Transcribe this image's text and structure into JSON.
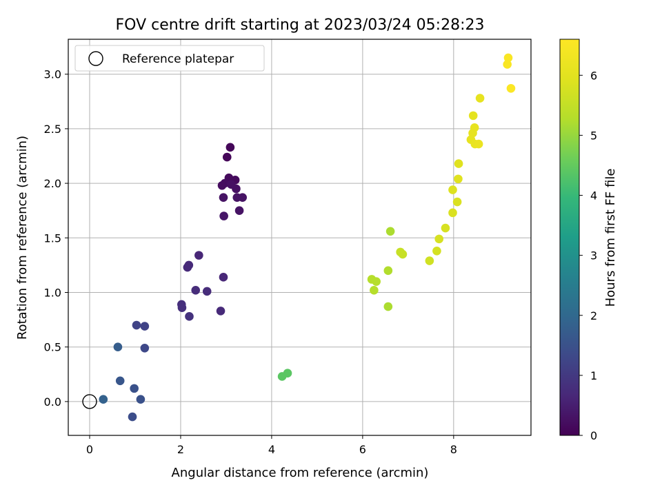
{
  "chart_data": {
    "type": "scatter",
    "title": "FOV centre drift starting at 2023/03/24 05:28:23",
    "xlabel": "Angular distance from reference (arcmin)",
    "ylabel": "Rotation from reference (arcmin)",
    "xlim": [
      -0.47,
      9.7
    ],
    "ylim": [
      -0.31,
      3.32
    ],
    "xticks": [
      0,
      2,
      4,
      6,
      8
    ],
    "yticks": [
      0.0,
      0.5,
      1.0,
      1.5,
      2.0,
      2.5,
      3.0
    ],
    "xtick_labels": [
      "0",
      "2",
      "4",
      "6",
      "8"
    ],
    "ytick_labels": [
      "0.0",
      "0.5",
      "1.0",
      "1.5",
      "2.0",
      "2.5",
      "3.0"
    ],
    "grid": true,
    "legend": {
      "label": "Reference platepar",
      "placement": "top-left"
    },
    "reference_point": {
      "x": 0,
      "y": 0
    },
    "colorbar": {
      "label": "Hours from first FF file",
      "range": [
        0,
        6.6
      ],
      "ticks": [
        0,
        1,
        2,
        3,
        4,
        5,
        6
      ],
      "tick_labels": [
        "0",
        "1",
        "2",
        "3",
        "4",
        "5",
        "6"
      ],
      "colormap": "viridis"
    },
    "points": [
      {
        "x": 3.09,
        "y": 2.33,
        "t": 0.1
      },
      {
        "x": 3.02,
        "y": 2.24,
        "t": 0.1
      },
      {
        "x": 3.06,
        "y": 2.05,
        "t": 0.15
      },
      {
        "x": 3.2,
        "y": 2.03,
        "t": 0.15
      },
      {
        "x": 2.97,
        "y": 2.0,
        "t": 0.2
      },
      {
        "x": 2.91,
        "y": 1.98,
        "t": 0.2
      },
      {
        "x": 3.11,
        "y": 1.99,
        "t": 0.25
      },
      {
        "x": 3.22,
        "y": 1.95,
        "t": 0.25
      },
      {
        "x": 2.94,
        "y": 1.87,
        "t": 0.3
      },
      {
        "x": 3.24,
        "y": 1.87,
        "t": 0.3
      },
      {
        "x": 3.36,
        "y": 1.87,
        "t": 0.3
      },
      {
        "x": 3.29,
        "y": 1.75,
        "t": 0.3
      },
      {
        "x": 2.95,
        "y": 1.7,
        "t": 0.35
      },
      {
        "x": 2.4,
        "y": 1.34,
        "t": 0.65
      },
      {
        "x": 2.18,
        "y": 1.25,
        "t": 0.7
      },
      {
        "x": 2.15,
        "y": 1.23,
        "t": 0.7
      },
      {
        "x": 2.94,
        "y": 1.14,
        "t": 0.65
      },
      {
        "x": 2.33,
        "y": 1.02,
        "t": 0.75
      },
      {
        "x": 2.58,
        "y": 1.01,
        "t": 0.75
      },
      {
        "x": 2.02,
        "y": 0.89,
        "t": 0.8
      },
      {
        "x": 2.03,
        "y": 0.86,
        "t": 0.8
      },
      {
        "x": 2.88,
        "y": 0.83,
        "t": 0.7
      },
      {
        "x": 2.19,
        "y": 0.78,
        "t": 0.85
      },
      {
        "x": 1.03,
        "y": 0.7,
        "t": 1.2
      },
      {
        "x": 1.21,
        "y": 0.69,
        "t": 1.2
      },
      {
        "x": 0.62,
        "y": 0.5,
        "t": 1.75
      },
      {
        "x": 1.21,
        "y": 0.49,
        "t": 1.3
      },
      {
        "x": 0.67,
        "y": 0.19,
        "t": 1.6
      },
      {
        "x": 0.98,
        "y": 0.12,
        "t": 1.5
      },
      {
        "x": 0.3,
        "y": 0.02,
        "t": 1.85
      },
      {
        "x": 1.12,
        "y": 0.02,
        "t": 1.5
      },
      {
        "x": 0.94,
        "y": -0.14,
        "t": 1.4
      },
      {
        "x": 4.23,
        "y": 0.23,
        "t": 4.4
      },
      {
        "x": 4.35,
        "y": 0.26,
        "t": 4.4
      },
      {
        "x": 6.61,
        "y": 1.56,
        "t": 5.2
      },
      {
        "x": 6.2,
        "y": 1.12,
        "t": 5.3
      },
      {
        "x": 6.3,
        "y": 1.1,
        "t": 5.3
      },
      {
        "x": 6.56,
        "y": 1.2,
        "t": 5.25
      },
      {
        "x": 6.25,
        "y": 1.02,
        "t": 5.3
      },
      {
        "x": 6.56,
        "y": 0.87,
        "t": 5.2
      },
      {
        "x": 6.83,
        "y": 1.37,
        "t": 5.55
      },
      {
        "x": 6.88,
        "y": 1.35,
        "t": 5.55
      },
      {
        "x": 7.47,
        "y": 1.29,
        "t": 5.7
      },
      {
        "x": 7.63,
        "y": 1.38,
        "t": 5.75
      },
      {
        "x": 7.68,
        "y": 1.49,
        "t": 5.8
      },
      {
        "x": 7.82,
        "y": 1.59,
        "t": 5.8
      },
      {
        "x": 7.98,
        "y": 1.73,
        "t": 5.85
      },
      {
        "x": 8.08,
        "y": 1.83,
        "t": 5.85
      },
      {
        "x": 7.98,
        "y": 1.94,
        "t": 5.9
      },
      {
        "x": 8.1,
        "y": 2.04,
        "t": 5.95
      },
      {
        "x": 8.11,
        "y": 2.18,
        "t": 5.95
      },
      {
        "x": 8.38,
        "y": 2.4,
        "t": 6.1
      },
      {
        "x": 8.47,
        "y": 2.36,
        "t": 6.15
      },
      {
        "x": 8.55,
        "y": 2.36,
        "t": 6.2
      },
      {
        "x": 8.42,
        "y": 2.46,
        "t": 6.1
      },
      {
        "x": 8.46,
        "y": 2.51,
        "t": 6.1
      },
      {
        "x": 8.43,
        "y": 2.62,
        "t": 6.05
      },
      {
        "x": 8.58,
        "y": 2.78,
        "t": 6.1
      },
      {
        "x": 9.2,
        "y": 3.15,
        "t": 6.5
      },
      {
        "x": 9.18,
        "y": 3.09,
        "t": 6.5
      },
      {
        "x": 9.26,
        "y": 2.87,
        "t": 6.55
      }
    ]
  }
}
